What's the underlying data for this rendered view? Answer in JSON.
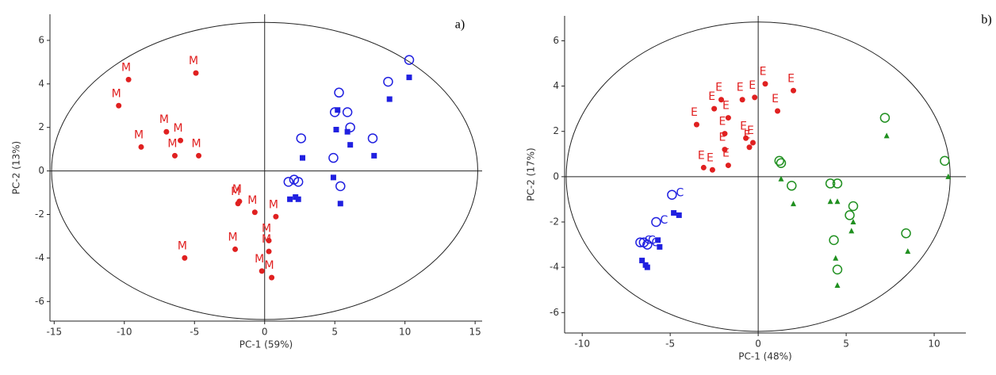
{
  "chart_data": [
    {
      "type": "scatter",
      "panel_label": "a)",
      "x_label": "PC-1 (59%)",
      "y_label": "PC-2 (13%)",
      "xlim": [
        -15.3,
        15.5
      ],
      "ylim": [
        -6.9,
        7.2
      ],
      "xticks": [
        -15,
        -10,
        -5,
        0,
        5,
        10,
        15
      ],
      "yticks": [
        -6,
        -4,
        -2,
        0,
        2,
        4,
        6
      ],
      "series": [
        {
          "marker": "circle",
          "color": "#e02020",
          "point_label": "M",
          "x": [
            -9.7,
            -10.4,
            -8.8,
            -4.9,
            -7.0,
            -6.0,
            -6.4,
            -4.7,
            -1.9,
            -1.8,
            -0.7,
            0.8,
            -5.7,
            -2.1,
            0.3,
            -0.2,
            0.5,
            0.3
          ],
          "y": [
            4.2,
            3.0,
            1.1,
            4.5,
            1.8,
            1.4,
            0.7,
            0.7,
            -1.5,
            -1.4,
            -1.9,
            -2.1,
            -4.0,
            -3.6,
            -3.7,
            -4.6,
            -4.9,
            -3.2
          ]
        },
        {
          "marker": "circle-open",
          "color": "#2020e0",
          "x": [
            10.3,
            8.8,
            5.3,
            5.0,
            5.9,
            6.1,
            2.6,
            7.7,
            4.9,
            1.7,
            2.1,
            2.4,
            5.4
          ],
          "y": [
            5.1,
            4.1,
            3.6,
            2.7,
            2.7,
            2.0,
            1.5,
            1.5,
            0.6,
            -0.5,
            -0.4,
            -0.5,
            -0.7
          ]
        },
        {
          "marker": "square",
          "color": "#2020e0",
          "x": [
            10.3,
            8.9,
            5.2,
            5.1,
            5.9,
            6.1,
            2.7,
            7.8,
            4.9,
            1.8,
            2.2,
            2.4,
            5.4
          ],
          "y": [
            4.3,
            3.3,
            2.8,
            1.9,
            1.8,
            1.2,
            0.6,
            0.7,
            -0.3,
            -1.3,
            -1.2,
            -1.3,
            -1.5
          ]
        }
      ]
    },
    {
      "type": "scatter",
      "panel_label": "b)",
      "x_label": "PC-1 (48%)",
      "y_label": "PC-2 (17%)",
      "xlim": [
        -11,
        11.8
      ],
      "ylim": [
        -6.9,
        7.1
      ],
      "xticks": [
        -10,
        -5,
        0,
        5,
        10
      ],
      "yticks": [
        -6,
        -4,
        -2,
        0,
        2,
        4,
        6
      ],
      "series": [
        {
          "marker": "circle",
          "color": "#e02020",
          "point_label": "E",
          "x": [
            -3.5,
            -3.1,
            -2.6,
            -2.5,
            -2.1,
            -1.9,
            -1.7,
            -1.9,
            -0.9,
            -0.7,
            -0.5,
            -0.3,
            -0.2,
            0.4,
            1.1,
            2.0,
            -1.7
          ],
          "y": [
            2.3,
            0.4,
            0.3,
            3.0,
            3.4,
            1.9,
            0.5,
            1.2,
            3.4,
            1.7,
            1.3,
            1.5,
            3.5,
            4.1,
            2.9,
            3.8,
            2.6
          ]
        },
        {
          "marker": "circle-open",
          "color": "#2020e0",
          "point_label": "C",
          "x": [
            -4.9,
            -5.8,
            -6.7,
            -6.5,
            -6.3
          ],
          "y": [
            -0.8,
            -2.0,
            -2.9,
            -2.9,
            -3.0
          ]
        },
        {
          "marker": "square",
          "color": "#2020e0",
          "x": [
            -4.8,
            -4.5,
            -5.7,
            -5.6,
            -6.6,
            -6.4,
            -6.3
          ],
          "y": [
            -1.6,
            -1.7,
            -2.8,
            -3.1,
            -3.7,
            -3.9,
            -4.0
          ]
        },
        {
          "marker": "circle-open",
          "color": "#209020",
          "x": [
            7.2,
            1.2,
            1.3,
            1.9,
            4.1,
            4.5,
            5.4,
            5.2,
            4.3,
            4.5,
            8.4,
            10.6
          ],
          "y": [
            2.6,
            0.7,
            0.6,
            -0.4,
            -0.3,
            -0.3,
            -1.3,
            -1.7,
            -2.8,
            -4.1,
            -2.5,
            0.7
          ]
        },
        {
          "marker": "triangle",
          "color": "#209020",
          "x": [
            7.3,
            1.3,
            2.0,
            4.1,
            4.5,
            5.4,
            5.3,
            4.4,
            4.5,
            8.5,
            10.8
          ],
          "y": [
            1.8,
            -0.1,
            -1.2,
            -1.1,
            -1.1,
            -2.0,
            -2.4,
            -3.6,
            -4.8,
            -3.3,
            0.0
          ]
        }
      ]
    }
  ]
}
